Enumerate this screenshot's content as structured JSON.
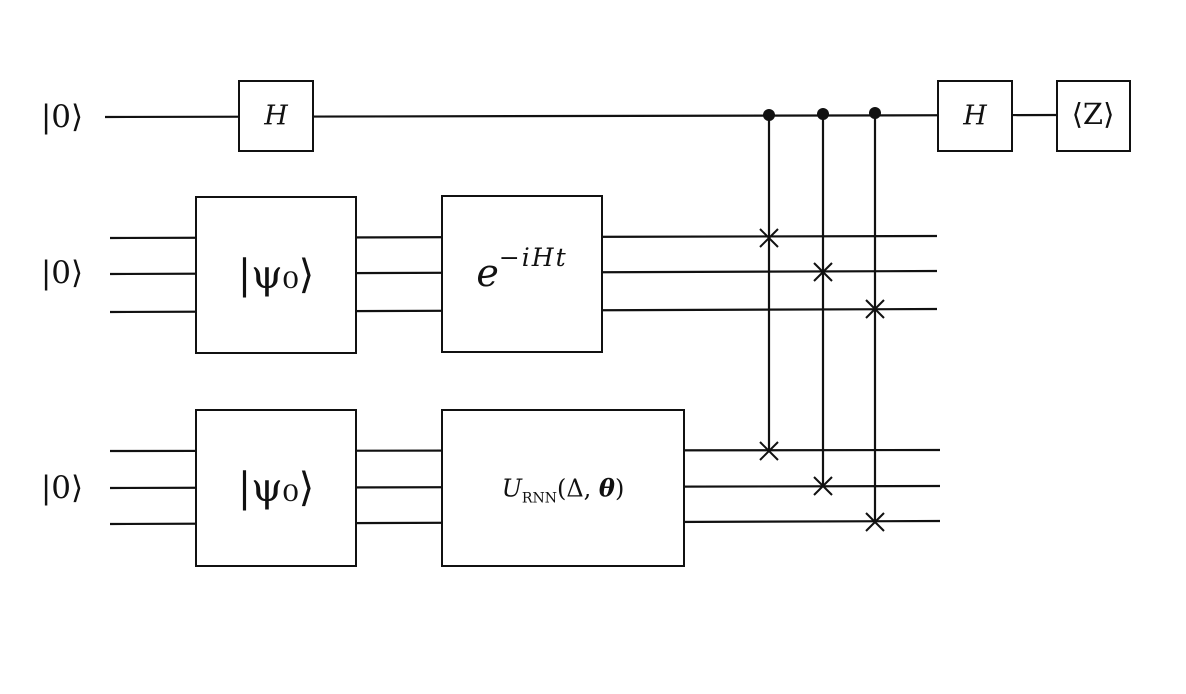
{
  "inputs": {
    "top": "|0⟩",
    "middle": "|0⟩",
    "bottom": "|0⟩"
  },
  "gates": {
    "hadamard_1": "H",
    "hadamard_2": "H",
    "measurement": "⟨Z⟩",
    "state_prep_middle": "|ψ₀⟩",
    "state_prep_bottom": "|ψ₀⟩",
    "evolution_base": "e",
    "evolution_exponent": "−iHt",
    "urnn_main": "U",
    "urnn_subscript": "RNN",
    "urnn_args_open": "(Δ, ",
    "urnn_theta": "θ",
    "urnn_args_close": ")"
  },
  "colors": {
    "ink": "#111111",
    "background": "#ffffff"
  }
}
